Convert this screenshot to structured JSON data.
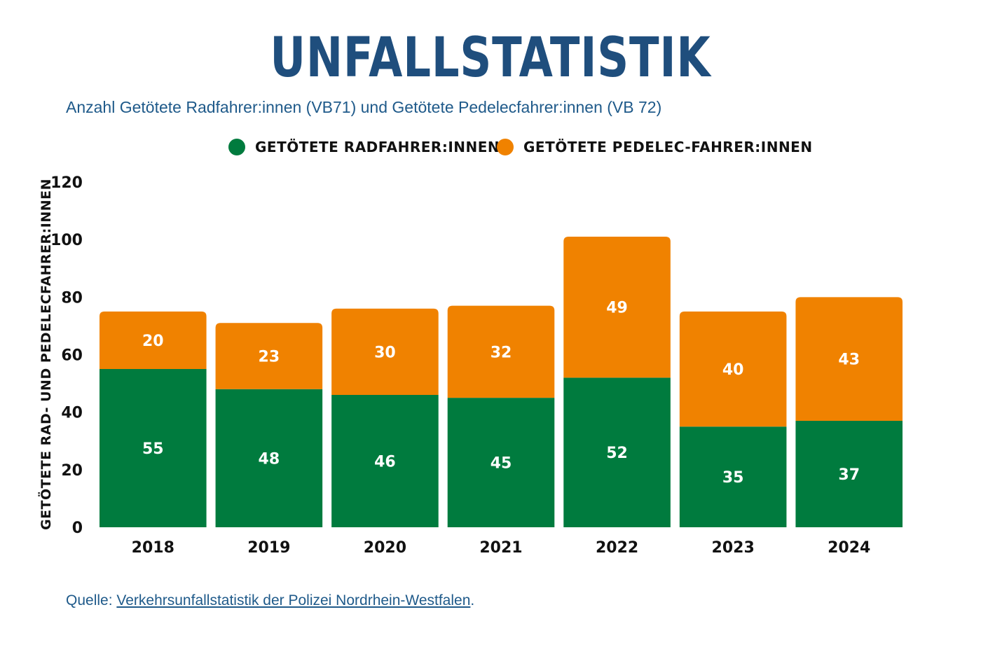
{
  "title": "UNFALLSTATISTIK",
  "subtitle": "Anzahl Getötete Radfahrer:innen (VB71) und Getötete Pedelecfahrer:innen (VB 72)",
  "source": {
    "prefix": "Quelle: ",
    "link_text": "Verkehrsunfallstatistik der Polizei Nordrhein-Westfalen",
    "suffix": "."
  },
  "colors": {
    "green": "#007b3e",
    "orange": "#f08200",
    "title": "#1f4e7d"
  },
  "chart_data": {
    "type": "bar",
    "stacked": true,
    "ylabel": "GETÖTETE RAD- UND PEDELECFAHRER:INNEN",
    "xlabel": "",
    "ylim": [
      0,
      120
    ],
    "yticks": [
      0,
      20,
      40,
      60,
      80,
      100,
      120
    ],
    "legend_position": "top-center",
    "grid": false,
    "categories": [
      "2018",
      "2019",
      "2020",
      "2021",
      "2022",
      "2023",
      "2024"
    ],
    "series": [
      {
        "name": "GETÖTETE RADFAHRER:INNEN",
        "color": "#007b3e",
        "values": [
          55,
          48,
          46,
          45,
          52,
          35,
          37
        ]
      },
      {
        "name": "GETÖTETE PEDELEC-FAHRER:INNEN",
        "color": "#f08200",
        "values": [
          20,
          23,
          30,
          32,
          49,
          40,
          43
        ]
      }
    ]
  }
}
